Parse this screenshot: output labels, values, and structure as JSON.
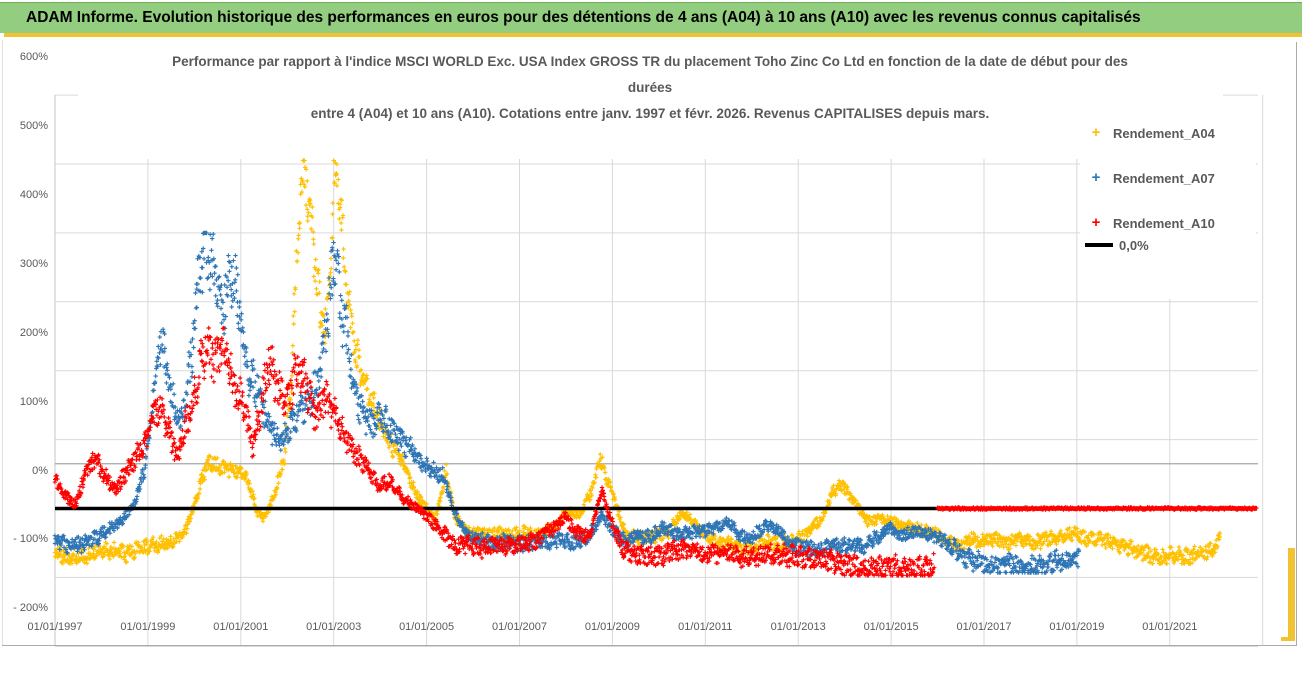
{
  "header": {
    "title": "ADAM Informe. Evolution historique des performances en euros pour des détentions de 4 ans (A04) à 10 ans (A10) avec les revenus connus capitalisés",
    "bg_color": "#93cd7f",
    "underline_color": "#f1c232"
  },
  "chart_data": {
    "type": "scatter",
    "title_lines": [
      "Performance par rapport à l'indice MSCI WORLD Exc. USA Index GROSS TR  du placement Toho Zinc Co Ltd en fonction de la date de début pour des",
      "durées",
      "entre 4 (A04) et 10 ans (A10). Cotations entre janv. 1997 et févr. 2026. Revenus CAPITALISES depuis mars."
    ],
    "grid_color": "#d9d9d9",
    "axis_text_color": "#595959",
    "gray_rule_pct": 65,
    "y_axis": {
      "min": -200,
      "max": 600,
      "ticks": [
        {
          "v": 600,
          "label": "600%"
        },
        {
          "v": 500,
          "label": "500%"
        },
        {
          "v": 400,
          "label": "400%"
        },
        {
          "v": 300,
          "label": "300%"
        },
        {
          "v": 200,
          "label": "200%"
        },
        {
          "v": 100,
          "label": "100%"
        },
        {
          "v": 0,
          "label": "0%"
        },
        {
          "v": -100,
          "label": "- 100%"
        },
        {
          "v": -200,
          "label": "- 200%"
        }
      ]
    },
    "x_axis": {
      "start_year": 1997,
      "end_year": 2023,
      "ticks": [
        {
          "year": 1997,
          "label": "01/01/1997"
        },
        {
          "year": 1999,
          "label": "01/01/1999"
        },
        {
          "year": 2001,
          "label": "01/01/2001"
        },
        {
          "year": 2003,
          "label": "01/01/2003"
        },
        {
          "year": 2005,
          "label": "01/01/2005"
        },
        {
          "year": 2007,
          "label": "01/01/2007"
        },
        {
          "year": 2009,
          "label": "01/01/2009"
        },
        {
          "year": 2011,
          "label": "01/01/2011"
        },
        {
          "year": 2013,
          "label": "01/01/2013"
        },
        {
          "year": 2015,
          "label": "01/01/2015"
        },
        {
          "year": 2017,
          "label": "01/01/2017"
        },
        {
          "year": 2019,
          "label": "01/01/2019"
        },
        {
          "year": 2021,
          "label": "01/01/2021"
        }
      ]
    },
    "legend": [
      {
        "label": "Rendement_A04",
        "color": "#ffc000",
        "marker": "plus"
      },
      {
        "label": "Rendement_A07",
        "color": "#2e75b6",
        "marker": "plus"
      },
      {
        "label": "Rendement_A10",
        "color": "#ff0000",
        "marker": "plus"
      },
      {
        "label": "0,0%",
        "color": "#000000",
        "marker": "line"
      }
    ],
    "zero_line": {
      "value": 0,
      "color": "#000000",
      "from": 1997.0,
      "to": 2016.05
    },
    "red_zero_segment": {
      "value": 0,
      "color": "#ff0000",
      "from": 2016.0,
      "to": 2022.88
    },
    "series": [
      {
        "name": "Rendement_A04",
        "color": "#ffc000",
        "spread_base": 6,
        "spread_rel": 0.07,
        "vmin": -80,
        "vmax": 505,
        "points": [
          [
            1997.0,
            -62
          ],
          [
            1997.3,
            -72
          ],
          [
            1997.7,
            -68
          ],
          [
            1998.1,
            -60
          ],
          [
            1998.5,
            -66
          ],
          [
            1999.0,
            -55
          ],
          [
            1999.4,
            -50
          ],
          [
            1999.8,
            -35
          ],
          [
            2000.0,
            5
          ],
          [
            2000.2,
            50
          ],
          [
            2000.35,
            68
          ],
          [
            2000.6,
            58
          ],
          [
            2000.9,
            55
          ],
          [
            2001.15,
            42
          ],
          [
            2001.35,
            -5
          ],
          [
            2001.5,
            -15
          ],
          [
            2001.7,
            15
          ],
          [
            2001.95,
            80
          ],
          [
            2002.1,
            200
          ],
          [
            2002.25,
            430
          ],
          [
            2002.4,
            490
          ],
          [
            2002.55,
            400
          ],
          [
            2002.7,
            285
          ],
          [
            2002.85,
            255
          ],
          [
            2003.0,
            465
          ],
          [
            2003.1,
            480
          ],
          [
            2003.25,
            330
          ],
          [
            2003.4,
            250
          ],
          [
            2003.6,
            190
          ],
          [
            2003.8,
            160
          ],
          [
            2004.0,
            130
          ],
          [
            2004.2,
            95
          ],
          [
            2004.45,
            75
          ],
          [
            2004.7,
            30
          ],
          [
            2004.95,
            5
          ],
          [
            2005.2,
            -15
          ],
          [
            2005.42,
            55
          ],
          [
            2005.6,
            -10
          ],
          [
            2005.9,
            -35
          ],
          [
            2006.2,
            -38
          ],
          [
            2006.5,
            -35
          ],
          [
            2006.8,
            -40
          ],
          [
            2007.1,
            -35
          ],
          [
            2007.4,
            -38
          ],
          [
            2007.7,
            -30
          ],
          [
            2008.0,
            -5
          ],
          [
            2008.3,
            -8
          ],
          [
            2008.55,
            25
          ],
          [
            2008.73,
            72
          ],
          [
            2008.9,
            40
          ],
          [
            2009.1,
            0
          ],
          [
            2009.3,
            -40
          ],
          [
            2009.6,
            -43
          ],
          [
            2009.9,
            -40
          ],
          [
            2010.2,
            -35
          ],
          [
            2010.5,
            -5
          ],
          [
            2010.8,
            -25
          ],
          [
            2011.1,
            -42
          ],
          [
            2011.4,
            -50
          ],
          [
            2011.7,
            -55
          ],
          [
            2012.0,
            -57
          ],
          [
            2012.3,
            -48
          ],
          [
            2012.6,
            -52
          ],
          [
            2012.9,
            -50
          ],
          [
            2013.2,
            -35
          ],
          [
            2013.5,
            -15
          ],
          [
            2013.75,
            25
          ],
          [
            2013.95,
            35
          ],
          [
            2014.2,
            10
          ],
          [
            2014.5,
            -18
          ],
          [
            2014.8,
            -15
          ],
          [
            2015.1,
            -20
          ],
          [
            2015.35,
            -25
          ],
          [
            2015.6,
            -30
          ],
          [
            2015.95,
            -35
          ],
          [
            2016.2,
            -45
          ],
          [
            2016.5,
            -55
          ],
          [
            2016.7,
            -43
          ],
          [
            2016.9,
            -48
          ],
          [
            2017.2,
            -44
          ],
          [
            2017.5,
            -50
          ],
          [
            2017.8,
            -45
          ],
          [
            2018.1,
            -50
          ],
          [
            2018.4,
            -43
          ],
          [
            2018.7,
            -40
          ],
          [
            2018.95,
            -35
          ],
          [
            2019.2,
            -45
          ],
          [
            2019.5,
            -46
          ],
          [
            2019.8,
            -50
          ],
          [
            2020.1,
            -57
          ],
          [
            2020.4,
            -63
          ],
          [
            2020.8,
            -74
          ],
          [
            2021.1,
            -66
          ],
          [
            2021.4,
            -70
          ],
          [
            2021.7,
            -63
          ],
          [
            2021.95,
            -58
          ],
          [
            2022.08,
            -44
          ]
        ]
      },
      {
        "name": "Rendement_A07",
        "color": "#2e75b6",
        "spread_base": 5,
        "spread_rel": 0.11,
        "vmin": -93,
        "vmax": 400,
        "points": [
          [
            1997.0,
            -45
          ],
          [
            1997.35,
            -55
          ],
          [
            1997.7,
            -50
          ],
          [
            1998.0,
            -38
          ],
          [
            1998.4,
            -20
          ],
          [
            1998.7,
            5
          ],
          [
            1998.95,
            60
          ],
          [
            1999.15,
            180
          ],
          [
            1999.3,
            245
          ],
          [
            1999.5,
            160
          ],
          [
            1999.7,
            120
          ],
          [
            1999.9,
            200
          ],
          [
            2000.1,
            330
          ],
          [
            2000.25,
            390
          ],
          [
            2000.45,
            330
          ],
          [
            2000.6,
            290
          ],
          [
            2000.8,
            345
          ],
          [
            2000.95,
            300
          ],
          [
            2001.15,
            200
          ],
          [
            2001.4,
            170
          ],
          [
            2001.6,
            120
          ],
          [
            2001.85,
            95
          ],
          [
            2002.1,
            120
          ],
          [
            2002.35,
            150
          ],
          [
            2002.6,
            170
          ],
          [
            2002.8,
            240
          ],
          [
            2003.0,
            355
          ],
          [
            2003.15,
            300
          ],
          [
            2003.35,
            220
          ],
          [
            2003.55,
            150
          ],
          [
            2003.8,
            120
          ],
          [
            2004.0,
            135
          ],
          [
            2004.3,
            110
          ],
          [
            2004.6,
            90
          ],
          [
            2004.9,
            65
          ],
          [
            2005.1,
            55
          ],
          [
            2005.35,
            48
          ],
          [
            2005.6,
            -5
          ],
          [
            2005.85,
            -35
          ],
          [
            2006.1,
            -45
          ],
          [
            2006.4,
            -50
          ],
          [
            2006.7,
            -48
          ],
          [
            2007.0,
            -52
          ],
          [
            2007.3,
            -48
          ],
          [
            2007.6,
            -50
          ],
          [
            2007.9,
            -45
          ],
          [
            2008.2,
            -50
          ],
          [
            2008.5,
            -40
          ],
          [
            2008.77,
            -10
          ],
          [
            2009.0,
            -30
          ],
          [
            2009.25,
            -48
          ],
          [
            2009.5,
            -40
          ],
          [
            2009.8,
            -42
          ],
          [
            2010.1,
            -28
          ],
          [
            2010.4,
            -38
          ],
          [
            2010.7,
            -35
          ],
          [
            2011.0,
            -32
          ],
          [
            2011.3,
            -25
          ],
          [
            2011.5,
            -18
          ],
          [
            2011.75,
            -40
          ],
          [
            2012.0,
            -42
          ],
          [
            2012.3,
            -24
          ],
          [
            2012.55,
            -30
          ],
          [
            2012.9,
            -55
          ],
          [
            2013.2,
            -58
          ],
          [
            2013.5,
            -60
          ],
          [
            2013.8,
            -55
          ],
          [
            2014.1,
            -52
          ],
          [
            2014.4,
            -55
          ],
          [
            2014.7,
            -42
          ],
          [
            2014.95,
            -28
          ],
          [
            2015.2,
            -40
          ],
          [
            2015.55,
            -33
          ],
          [
            2015.95,
            -40
          ],
          [
            2016.3,
            -55
          ],
          [
            2016.7,
            -75
          ],
          [
            2017.0,
            -80
          ],
          [
            2017.3,
            -85
          ],
          [
            2017.6,
            -82
          ],
          [
            2017.9,
            -86
          ],
          [
            2018.2,
            -84
          ],
          [
            2018.5,
            -76
          ],
          [
            2018.8,
            -74
          ],
          [
            2019.05,
            -70
          ]
        ]
      },
      {
        "name": "Rendement_A10",
        "color": "#ff0000",
        "spread_base": 6,
        "spread_rel": 0.11,
        "vmin": -97,
        "vmax": 262,
        "points": [
          [
            1997.0,
            45
          ],
          [
            1997.2,
            20
          ],
          [
            1997.45,
            5
          ],
          [
            1997.65,
            50
          ],
          [
            1997.85,
            75
          ],
          [
            1998.1,
            45
          ],
          [
            1998.3,
            25
          ],
          [
            1998.55,
            55
          ],
          [
            1998.8,
            80
          ],
          [
            1998.95,
            95
          ],
          [
            1999.1,
            135
          ],
          [
            1999.25,
            150
          ],
          [
            1999.45,
            110
          ],
          [
            1999.65,
            75
          ],
          [
            1999.85,
            130
          ],
          [
            2000.05,
            180
          ],
          [
            2000.25,
            240
          ],
          [
            2000.45,
            215
          ],
          [
            2000.65,
            230
          ],
          [
            2000.85,
            180
          ],
          [
            2001.05,
            150
          ],
          [
            2001.25,
            90
          ],
          [
            2001.45,
            150
          ],
          [
            2001.6,
            215
          ],
          [
            2001.8,
            170
          ],
          [
            2002.0,
            160
          ],
          [
            2002.2,
            200
          ],
          [
            2002.4,
            180
          ],
          [
            2002.6,
            130
          ],
          [
            2002.8,
            160
          ],
          [
            2003.0,
            135
          ],
          [
            2003.2,
            115
          ],
          [
            2003.45,
            80
          ],
          [
            2003.7,
            60
          ],
          [
            2003.95,
            35
          ],
          [
            2004.2,
            40
          ],
          [
            2004.5,
            15
          ],
          [
            2004.8,
            0
          ],
          [
            2005.05,
            -15
          ],
          [
            2005.3,
            -30
          ],
          [
            2005.6,
            -55
          ],
          [
            2005.9,
            -52
          ],
          [
            2006.2,
            -58
          ],
          [
            2006.5,
            -52
          ],
          [
            2006.8,
            -55
          ],
          [
            2007.1,
            -50
          ],
          [
            2007.4,
            -45
          ],
          [
            2007.7,
            -30
          ],
          [
            2008.0,
            -12
          ],
          [
            2008.2,
            -35
          ],
          [
            2008.5,
            -40
          ],
          [
            2008.77,
            25
          ],
          [
            2008.95,
            -15
          ],
          [
            2009.2,
            -55
          ],
          [
            2009.45,
            -65
          ],
          [
            2009.7,
            -68
          ],
          [
            2010.0,
            -70
          ],
          [
            2010.3,
            -62
          ],
          [
            2010.6,
            -60
          ],
          [
            2010.9,
            -65
          ],
          [
            2011.2,
            -68
          ],
          [
            2011.5,
            -65
          ],
          [
            2011.8,
            -70
          ],
          [
            2012.1,
            -67
          ],
          [
            2012.4,
            -65
          ],
          [
            2012.7,
            -68
          ],
          [
            2013.0,
            -70
          ],
          [
            2013.3,
            -72
          ],
          [
            2013.6,
            -75
          ],
          [
            2013.9,
            -79
          ],
          [
            2014.2,
            -82
          ],
          [
            2014.5,
            -87
          ],
          [
            2014.8,
            -88
          ],
          [
            2015.1,
            -86
          ],
          [
            2015.4,
            -89
          ],
          [
            2015.7,
            -88
          ],
          [
            2015.9,
            -85
          ],
          [
            2015.94,
            -74
          ]
        ]
      }
    ]
  }
}
